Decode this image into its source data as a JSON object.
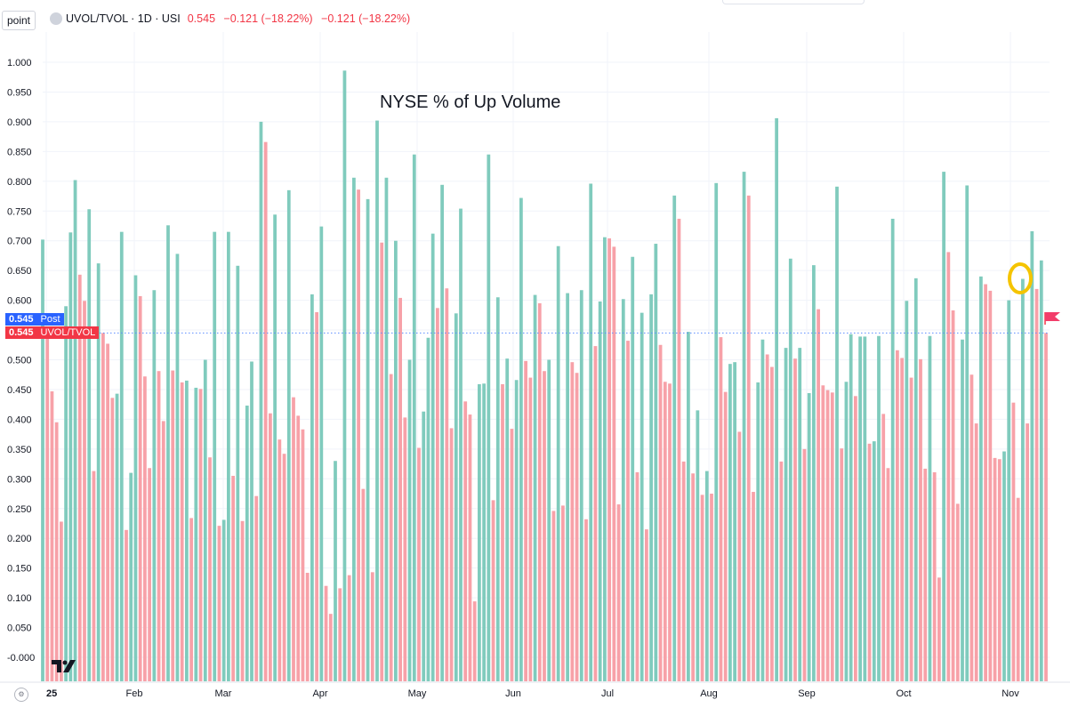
{
  "toolbar": {
    "point_label": "point"
  },
  "legend": {
    "symbol": "UVOL/TVOL · 1D · USI",
    "last": "0.545",
    "change": "−0.121 (−18.22%)",
    "change2": "−0.121 (−18.22%)"
  },
  "badges": {
    "post_value": "0.545",
    "post_label": "Post",
    "main_value": "0.545",
    "main_label": "UVOL/TVOL"
  },
  "colors": {
    "up": "#80cbbd",
    "down": "#f7a1a8",
    "badge_post": "#2962ff",
    "badge_main": "#f23645",
    "highlight": "#f5c400"
  },
  "chart_data": {
    "type": "bar",
    "title": "NYSE % of Up Volume",
    "xlabel": "",
    "ylabel": "",
    "ylim": [
      -0.05,
      1.05
    ],
    "grid": true,
    "y_ticks": [
      "1.000",
      "0.950",
      "0.900",
      "0.850",
      "0.800",
      "0.750",
      "0.700",
      "0.650",
      "0.600",
      "0.550",
      "0.500",
      "0.450",
      "0.400",
      "0.350",
      "0.300",
      "0.250",
      "0.200",
      "0.150",
      "0.100",
      "0.050",
      "-0.000"
    ],
    "x_ticks": [
      "25",
      "Feb",
      "Mar",
      "Apr",
      "May",
      "Jun",
      "Jul",
      "Aug",
      "Sep",
      "Oct",
      "Nov"
    ],
    "values": [
      0.702,
      0.545,
      0.447,
      0.395,
      0.228,
      0.59,
      0.714,
      0.802,
      0.643,
      0.599,
      0.753,
      0.313,
      0.662,
      0.545,
      0.527,
      0.436,
      0.443,
      0.715,
      0.214,
      0.31,
      0.642,
      0.607,
      0.472,
      0.318,
      0.617,
      0.481,
      0.397,
      0.726,
      0.482,
      0.678,
      0.462,
      0.465,
      0.234,
      0.453,
      0.451,
      0.5,
      0.336,
      0.715,
      0.221,
      0.231,
      0.715,
      0.305,
      0.658,
      0.229,
      0.423,
      0.497,
      0.271,
      0.9,
      0.866,
      0.41,
      0.744,
      0.366,
      0.342,
      0.785,
      0.437,
      0.406,
      0.383,
      0.142,
      0.61,
      0.58,
      0.724,
      0.12,
      0.073,
      0.33,
      0.116,
      0.986,
      0.138,
      0.806,
      0.786,
      0.283,
      0.77,
      0.143,
      0.902,
      0.697,
      0.806,
      0.476,
      0.7,
      0.604,
      0.403,
      0.5,
      0.845,
      0.352,
      0.413,
      0.537,
      0.712,
      0.587,
      0.794,
      0.62,
      0.385,
      0.578,
      0.754,
      0.43,
      0.408,
      0.094,
      0.459,
      0.46,
      0.845,
      0.264,
      0.605,
      0.459,
      0.502,
      0.384,
      0.466,
      0.772,
      0.498,
      0.47,
      0.609,
      0.595,
      0.481,
      0.5,
      0.246,
      0.691,
      0.255,
      0.612,
      0.496,
      0.478,
      0.617,
      0.232,
      0.796,
      0.523,
      0.598,
      0.706,
      0.704,
      0.69,
      0.257,
      0.602,
      0.532,
      0.673,
      0.311,
      0.579,
      0.215,
      0.61,
      0.695,
      0.525,
      0.463,
      0.46,
      0.776,
      0.737,
      0.329,
      0.547,
      0.309,
      0.415,
      0.273,
      0.313,
      0.275,
      0.797,
      0.538,
      0.446,
      0.493,
      0.496,
      0.379,
      0.816,
      0.776,
      0.278,
      0.462,
      0.534,
      0.509,
      0.488,
      0.906,
      0.329,
      0.52,
      0.67,
      0.502,
      0.52,
      0.35,
      0.444,
      0.659,
      0.585,
      0.457,
      0.449,
      0.445,
      0.791,
      0.351,
      0.463,
      0.543,
      0.439,
      0.539,
      0.539,
      0.359,
      0.363,
      0.54,
      0.409,
      0.318,
      0.737,
      0.516,
      0.503,
      0.599,
      0.47,
      0.637,
      0.501,
      0.317,
      0.54,
      0.311,
      0.134,
      0.816,
      0.681,
      0.583,
      0.258,
      0.534,
      0.793,
      0.475,
      0.393,
      0.64,
      0.627,
      0.616,
      0.335,
      0.333,
      0.346,
      0.6,
      0.428,
      0.268,
      0.636,
      0.393,
      0.716,
      0.619,
      0.667,
      0.545
    ],
    "last_value": 0.545
  }
}
